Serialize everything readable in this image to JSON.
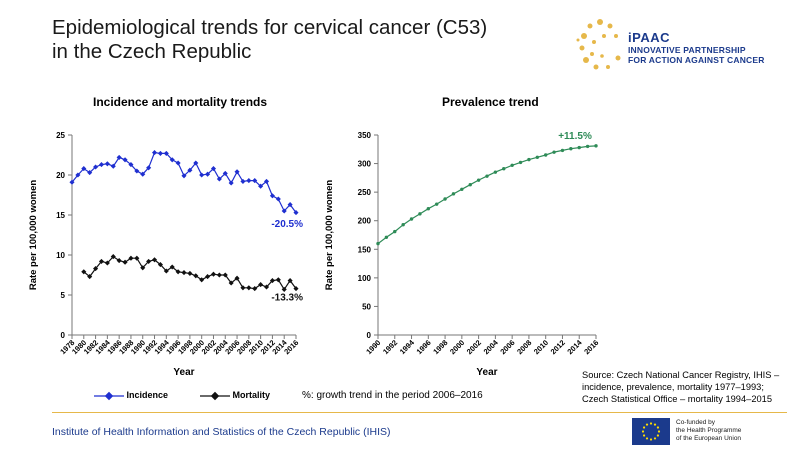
{
  "page": {
    "title_lines": [
      "Epidemiological trends for cervical cancer (C53)",
      "in the Czech Republic"
    ],
    "logo": {
      "name": "iPAAC",
      "subtitle_lines": [
        "INNOVATIVE PARTNERSHIP",
        "FOR ACTION AGAINST CANCER"
      ]
    },
    "note": "%: growth trend in the period 2006–2016",
    "source_lines": [
      "Source: Czech National Cancer Registry, IHIS –",
      "incidence, prevalence, mortality 1977–1993;",
      "Czech Statistical Office – mortality 1994–2015"
    ],
    "footer": "Institute of Health Information and Statistics of the Czech Republic (IHIS)",
    "eu_lines": [
      "Co-funded by",
      "the Health Programme",
      "of the European Union"
    ],
    "colors": {
      "incidence": "#1f2fd0",
      "mortality": "#111111",
      "prevalence": "#2e8b57",
      "accent": "#e6b84a",
      "brand": "#1b3a8c"
    }
  },
  "chart_data": [
    {
      "type": "line",
      "title": "Incidence and mortality trends",
      "xlabel": "Year",
      "ylabel": "Rate per 100,000 women",
      "ylim": [
        0,
        25
      ],
      "yticks": [
        0,
        5,
        10,
        15,
        20,
        25
      ],
      "xlim": [
        1978,
        2016
      ],
      "xtick_labels": [
        "1978",
        "1980",
        "1982",
        "1984",
        "1986",
        "1988",
        "1990",
        "1992",
        "1994",
        "1996",
        "1998",
        "2000",
        "2002",
        "2004",
        "2006",
        "2008",
        "2010",
        "2012",
        "2014",
        "2016"
      ],
      "legend": "bottom",
      "series": [
        {
          "name": "Incidence",
          "color": "#1f2fd0",
          "points": [
            [
              1978,
              19.1
            ],
            [
              1979,
              20.0
            ],
            [
              1980,
              20.8
            ],
            [
              1981,
              20.3
            ],
            [
              1982,
              21.0
            ],
            [
              1983,
              21.3
            ],
            [
              1984,
              21.4
            ],
            [
              1985,
              21.1
            ],
            [
              1986,
              22.2
            ],
            [
              1987,
              21.9
            ],
            [
              1988,
              21.3
            ],
            [
              1989,
              20.5
            ],
            [
              1990,
              20.1
            ],
            [
              1991,
              20.9
            ],
            [
              1992,
              22.8
            ],
            [
              1993,
              22.7
            ],
            [
              1994,
              22.7
            ],
            [
              1995,
              21.9
            ],
            [
              1996,
              21.5
            ],
            [
              1997,
              19.9
            ],
            [
              1998,
              20.6
            ],
            [
              1999,
              21.5
            ],
            [
              2000,
              20.0
            ],
            [
              2001,
              20.1
            ],
            [
              2002,
              20.8
            ],
            [
              2003,
              19.5
            ],
            [
              2004,
              20.2
            ],
            [
              2005,
              19.0
            ],
            [
              2006,
              20.4
            ],
            [
              2007,
              19.2
            ],
            [
              2008,
              19.3
            ],
            [
              2009,
              19.3
            ],
            [
              2010,
              18.6
            ],
            [
              2011,
              19.2
            ],
            [
              2012,
              17.4
            ],
            [
              2013,
              17.0
            ],
            [
              2014,
              15.5
            ],
            [
              2015,
              16.3
            ],
            [
              2016,
              15.3
            ]
          ],
          "label": "-20.5%"
        },
        {
          "name": "Mortality",
          "color": "#111111",
          "points": [
            [
              1980,
              7.9
            ],
            [
              1981,
              7.3
            ],
            [
              1982,
              8.3
            ],
            [
              1983,
              9.2
            ],
            [
              1984,
              9.0
            ],
            [
              1985,
              9.8
            ],
            [
              1986,
              9.3
            ],
            [
              1987,
              9.1
            ],
            [
              1988,
              9.6
            ],
            [
              1989,
              9.6
            ],
            [
              1990,
              8.4
            ],
            [
              1991,
              9.2
            ],
            [
              1992,
              9.4
            ],
            [
              1993,
              8.8
            ],
            [
              1994,
              8.0
            ],
            [
              1995,
              8.5
            ],
            [
              1996,
              7.9
            ],
            [
              1997,
              7.8
            ],
            [
              1998,
              7.7
            ],
            [
              1999,
              7.4
            ],
            [
              2000,
              6.9
            ],
            [
              2001,
              7.3
            ],
            [
              2002,
              7.6
            ],
            [
              2003,
              7.5
            ],
            [
              2004,
              7.5
            ],
            [
              2005,
              6.5
            ],
            [
              2006,
              7.1
            ],
            [
              2007,
              5.9
            ],
            [
              2008,
              5.9
            ],
            [
              2009,
              5.8
            ],
            [
              2010,
              6.3
            ],
            [
              2011,
              6.0
            ],
            [
              2012,
              6.8
            ],
            [
              2013,
              6.9
            ],
            [
              2014,
              5.7
            ],
            [
              2015,
              6.8
            ],
            [
              2016,
              5.8
            ]
          ],
          "label": "-13.3%"
        }
      ]
    },
    {
      "type": "line",
      "title": "Prevalence trend",
      "xlabel": "Year",
      "ylabel": "Rate per 100,000 women",
      "ylim": [
        0,
        350
      ],
      "yticks": [
        0,
        50,
        100,
        150,
        200,
        250,
        300,
        350
      ],
      "xlim": [
        1990,
        2016
      ],
      "xtick_labels": [
        "1990",
        "1992",
        "1994",
        "1996",
        "1998",
        "2000",
        "2002",
        "2004",
        "2006",
        "2008",
        "2010",
        "2012",
        "2014",
        "2016"
      ],
      "series": [
        {
          "color": "#2e8b57",
          "points": [
            [
              1990,
              160
            ],
            [
              1991,
              171
            ],
            [
              1992,
              181
            ],
            [
              1993,
              193
            ],
            [
              1994,
              203
            ],
            [
              1995,
              212
            ],
            [
              1996,
              221
            ],
            [
              1997,
              229
            ],
            [
              1998,
              238
            ],
            [
              1999,
              247
            ],
            [
              2000,
              255
            ],
            [
              2001,
              263
            ],
            [
              2002,
              271
            ],
            [
              2003,
              278
            ],
            [
              2004,
              285
            ],
            [
              2005,
              291
            ],
            [
              2006,
              297
            ],
            [
              2007,
              302
            ],
            [
              2008,
              307
            ],
            [
              2009,
              311
            ],
            [
              2010,
              315
            ],
            [
              2011,
              320
            ],
            [
              2012,
              323
            ],
            [
              2013,
              326
            ],
            [
              2014,
              328
            ],
            [
              2015,
              330
            ],
            [
              2016,
              331
            ]
          ],
          "label": "+11.5%"
        }
      ]
    }
  ]
}
